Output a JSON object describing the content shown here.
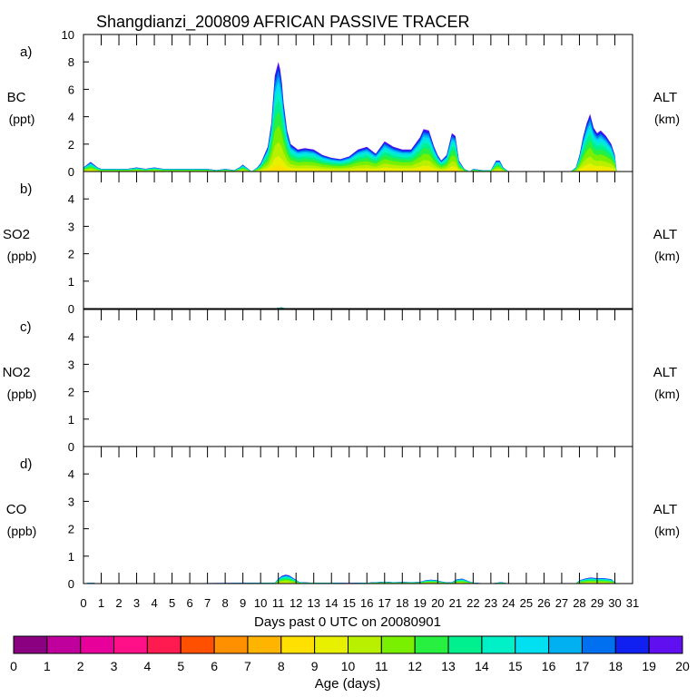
{
  "chart_data": {
    "type": "area",
    "title": "Shangdianzi_200809 AFRICAN PASSIVE TRACER",
    "xlabel": "Days past 0 UTC on 20080901",
    "x_ticks": [
      "0",
      "1",
      "2",
      "3",
      "4",
      "5",
      "6",
      "7",
      "8",
      "9",
      "10",
      "11",
      "12",
      "13",
      "14",
      "15",
      "16",
      "17",
      "18",
      "19",
      "20",
      "21",
      "22",
      "23",
      "24",
      "25",
      "26",
      "27",
      "28",
      "29",
      "30",
      "31"
    ],
    "xlim": [
      0,
      31
    ],
    "right_label": [
      "ALT",
      "(km)"
    ],
    "panels": [
      {
        "id": "a",
        "letter": "a)",
        "species": "BC",
        "unit": "(ppt)",
        "ylim": [
          0,
          10
        ],
        "yticks": [
          "0",
          "2",
          "4",
          "6",
          "8",
          "10"
        ],
        "series": {
          "x": [
            0,
            0.2,
            0.4,
            0.6,
            0.8,
            1,
            1.5,
            2,
            2.5,
            3,
            3.5,
            4,
            4.5,
            5,
            5.5,
            6,
            6.5,
            7,
            7.5,
            8,
            8.5,
            8.8,
            9,
            9.2,
            9.5,
            9.8,
            10,
            10.2,
            10.4,
            10.6,
            10.8,
            11,
            11.1,
            11.2,
            11.3,
            11.5,
            11.7,
            11.9,
            12.1,
            12.5,
            13,
            13.5,
            14,
            14.5,
            15,
            15.5,
            16,
            16.5,
            17,
            17.5,
            18,
            18.5,
            19,
            19.2,
            19.5,
            19.8,
            20,
            20.2,
            20.5,
            20.8,
            21,
            21.2,
            21.5,
            21.8,
            22,
            22.5,
            23,
            23.3,
            23.5,
            23.7,
            24,
            24.5,
            25,
            25.5,
            26,
            26.5,
            27,
            27.5,
            27.8,
            28,
            28.2,
            28.4,
            28.6,
            28.8,
            29,
            29.2,
            29.5,
            29.8,
            30,
            30.1
          ],
          "total": [
            0.3,
            0.5,
            0.7,
            0.5,
            0.3,
            0.2,
            0.2,
            0.2,
            0.2,
            0.3,
            0.2,
            0.3,
            0.2,
            0.2,
            0.2,
            0.2,
            0.2,
            0.2,
            0.1,
            0.2,
            0.1,
            0.3,
            0.5,
            0.3,
            0,
            0.3,
            0.6,
            1.2,
            1.8,
            3.5,
            7,
            8,
            7.5,
            6.5,
            5,
            3,
            2,
            1.8,
            1.6,
            1.7,
            1.6,
            1.2,
            1,
            0.9,
            1.1,
            1.6,
            1.8,
            1.3,
            2.2,
            1.8,
            1.6,
            1.6,
            2.5,
            3.1,
            3,
            1.8,
            1.2,
            0.8,
            1.2,
            2.8,
            2.6,
            0.8,
            0.2,
            0,
            0.2,
            0.1,
            0.1,
            0.8,
            0.8,
            0.3,
            0,
            0,
            0,
            0,
            0,
            0,
            0,
            0,
            0.3,
            1.2,
            2.5,
            3.5,
            4.2,
            3.2,
            2.8,
            3,
            2.6,
            2,
            1.2,
            0
          ],
          "age_weights": [
            0,
            0,
            0,
            0,
            0,
            0,
            0,
            0,
            0.05,
            0.08,
            0.12,
            0.14,
            0.12,
            0.1,
            0.08,
            0.07,
            0.05,
            0.05,
            0.04,
            0.03
          ]
        }
      },
      {
        "id": "b",
        "letter": "b)",
        "species": "SO2",
        "unit": "(ppb)",
        "ylim": [
          0,
          5
        ],
        "yticks": [
          "0",
          "1",
          "2",
          "3",
          "4"
        ],
        "series": {
          "x": [
            0,
            10.8,
            11,
            11.2,
            11.4,
            30.1
          ],
          "total": [
            0,
            0,
            0.03,
            0.04,
            0,
            0
          ]
        }
      },
      {
        "id": "c",
        "letter": "c)",
        "species": "NO2",
        "unit": "(ppb)",
        "ylim": [
          0,
          5
        ],
        "yticks": [
          "0",
          "1",
          "2",
          "3",
          "4"
        ],
        "series": {
          "x": [
            0,
            30.1
          ],
          "total": [
            0,
            0
          ]
        }
      },
      {
        "id": "d",
        "letter": "d)",
        "species": "CO",
        "unit": "(ppb)",
        "ylim": [
          0,
          5
        ],
        "yticks": [
          "0",
          "1",
          "2",
          "3",
          "4"
        ],
        "series": {
          "x": [
            0,
            0.3,
            0.6,
            1,
            10.8,
            11,
            11.2,
            11.4,
            11.6,
            11.8,
            12.2,
            13,
            14,
            15,
            16,
            16.5,
            17,
            17.5,
            18,
            18.5,
            19,
            19.3,
            19.6,
            19.9,
            20.2,
            20.5,
            20.8,
            21.1,
            21.4,
            21.7,
            22,
            23,
            23.3,
            23.6,
            24,
            27.8,
            28,
            28.3,
            28.6,
            29,
            29.4,
            29.8,
            30.1
          ],
          "total": [
            0,
            0.03,
            0.02,
            0,
            0.03,
            0.18,
            0.28,
            0.32,
            0.3,
            0.22,
            0.05,
            0.03,
            0.03,
            0.02,
            0.03,
            0.05,
            0.07,
            0.05,
            0.06,
            0.05,
            0.06,
            0.12,
            0.14,
            0.13,
            0.08,
            0.04,
            0.05,
            0.16,
            0.18,
            0.1,
            0.03,
            0,
            0.03,
            0.05,
            0,
            0,
            0.12,
            0.18,
            0.22,
            0.2,
            0.2,
            0.16,
            0
          ]
        }
      }
    ],
    "colorbar": {
      "label": "Age (days)",
      "ticks": [
        "0",
        "1",
        "2",
        "3",
        "4",
        "5",
        "6",
        "7",
        "8",
        "9",
        "10",
        "11",
        "12",
        "13",
        "14",
        "15",
        "16",
        "17",
        "18",
        "19",
        "20"
      ],
      "colors": [
        "#8a0080",
        "#c0009c",
        "#e8009a",
        "#ff0f88",
        "#ff1a50",
        "#ff5000",
        "#ff9000",
        "#ffb400",
        "#ffe000",
        "#e8f000",
        "#b8f000",
        "#78f000",
        "#28f040",
        "#00f090",
        "#00f0c8",
        "#00e0f0",
        "#00b0f0",
        "#0070f0",
        "#1020f0",
        "#6010f0"
      ]
    }
  }
}
